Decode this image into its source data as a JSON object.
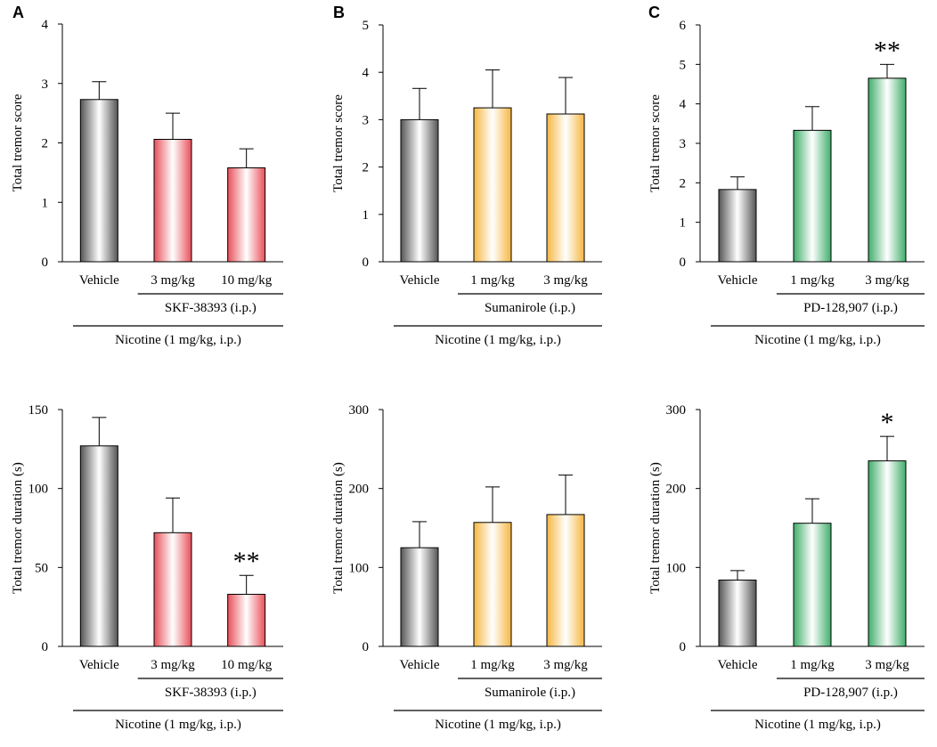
{
  "figure": {
    "panel_letters": [
      "A",
      "B",
      "C"
    ],
    "bottom_group_label": "Nicotine (1 mg/kg,  i.p.)"
  },
  "chart_data": [
    {
      "id": "A-score",
      "panel": "A",
      "type": "bar",
      "ylabel": "Total tremor score",
      "ylim": [
        0,
        4
      ],
      "yticks": [
        0,
        1,
        2,
        3,
        4
      ],
      "categories": [
        "Vehicle",
        "3 mg/kg",
        "10 mg/kg"
      ],
      "values": [
        2.73,
        2.06,
        1.58
      ],
      "errors": [
        0.3,
        0.44,
        0.32
      ],
      "significance": [
        "",
        "",
        ""
      ],
      "colors": [
        "#555555",
        "#e8505a",
        "#e8505a"
      ],
      "drug_label": "SKF-38393  (i.p.)",
      "nicotine_label": "Nicotine (1 mg/kg,  i.p.)"
    },
    {
      "id": "B-score",
      "panel": "B",
      "type": "bar",
      "ylabel": "Total tremor score",
      "ylim": [
        0,
        5
      ],
      "yticks": [
        0,
        1,
        2,
        3,
        4,
        5
      ],
      "categories": [
        "Vehicle",
        "1 mg/kg",
        "3 mg/kg"
      ],
      "values": [
        3.0,
        3.25,
        3.12
      ],
      "errors": [
        0.66,
        0.8,
        0.77
      ],
      "significance": [
        "",
        "",
        ""
      ],
      "colors": [
        "#555555",
        "#f5b742",
        "#f5b742"
      ],
      "drug_label": "Sumanirole (i.p.)",
      "nicotine_label": "Nicotine (1 mg/kg,  i.p.)"
    },
    {
      "id": "C-score",
      "panel": "C",
      "type": "bar",
      "ylabel": "Total tremor score",
      "ylim": [
        0,
        6
      ],
      "yticks": [
        0,
        1,
        2,
        3,
        4,
        5,
        6
      ],
      "categories": [
        "Vehicle",
        "1 mg/kg",
        "3 mg/kg"
      ],
      "values": [
        1.83,
        3.33,
        4.65
      ],
      "errors": [
        0.32,
        0.6,
        0.35
      ],
      "significance": [
        "",
        "",
        "**"
      ],
      "colors": [
        "#555555",
        "#3fae6a",
        "#3fae6a"
      ],
      "drug_label": "PD-128,907 (i.p.)",
      "nicotine_label": "Nicotine (1 mg/kg,  i.p.)"
    },
    {
      "id": "A-duration",
      "panel": "A",
      "type": "bar",
      "ylabel": "Total tremor duration (s)",
      "ylim": [
        0,
        150
      ],
      "yticks": [
        0,
        50,
        100,
        150
      ],
      "categories": [
        "Vehicle",
        "3 mg/kg",
        "10 mg/kg"
      ],
      "values": [
        127,
        72,
        33
      ],
      "errors": [
        18,
        22,
        12
      ],
      "significance": [
        "",
        "",
        "**"
      ],
      "colors": [
        "#555555",
        "#e8505a",
        "#e8505a"
      ],
      "drug_label": "SKF-38393  (i.p.)",
      "nicotine_label": "Nicotine (1 mg/kg,  i.p.)"
    },
    {
      "id": "B-duration",
      "panel": "B",
      "type": "bar",
      "ylabel": "Total tremor duration (s)",
      "ylim": [
        0,
        300
      ],
      "yticks": [
        0,
        100,
        200,
        300
      ],
      "categories": [
        "Vehicle",
        "1 mg/kg",
        "3 mg/kg"
      ],
      "values": [
        125,
        157,
        167
      ],
      "errors": [
        33,
        45,
        50
      ],
      "significance": [
        "",
        "",
        ""
      ],
      "colors": [
        "#555555",
        "#f5b742",
        "#f5b742"
      ],
      "drug_label": "Sumanirole (i.p.)",
      "nicotine_label": "Nicotine (1 mg/kg,  i.p.)"
    },
    {
      "id": "C-duration",
      "panel": "C",
      "type": "bar",
      "ylabel": "Total tremor duration (s)",
      "ylim": [
        0,
        300
      ],
      "yticks": [
        0,
        100,
        200,
        300
      ],
      "categories": [
        "Vehicle",
        "1 mg/kg",
        "3 mg/kg"
      ],
      "values": [
        84,
        156,
        235
      ],
      "errors": [
        12,
        31,
        31
      ],
      "significance": [
        "",
        "",
        "*"
      ],
      "colors": [
        "#555555",
        "#3fae6a",
        "#3fae6a"
      ],
      "drug_label": "PD-128,907 (i.p.)",
      "nicotine_label": "Nicotine (1 mg/kg,  i.p.)"
    }
  ]
}
